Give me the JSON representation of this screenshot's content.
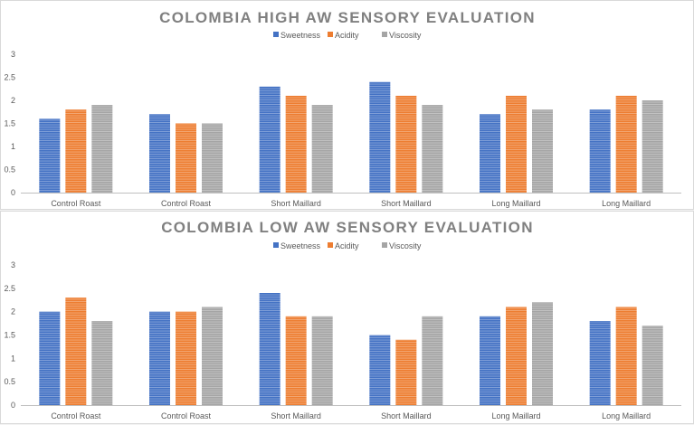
{
  "chart_data": [
    {
      "type": "bar",
      "title": "COLOMBIA HIGH AW SENSORY EVALUATION",
      "categories": [
        "Control Roast",
        "Control Roast",
        "Short Maillard",
        "Short Maillard",
        "Long Maillard",
        "Long Maillard"
      ],
      "series": [
        {
          "name": "Sweetness",
          "color": "#4472c4",
          "values": [
            1.6,
            1.7,
            2.3,
            2.4,
            1.7,
            1.8
          ]
        },
        {
          "name": "Acidity",
          "color": "#ed7d31",
          "values": [
            1.8,
            1.5,
            2.1,
            2.1,
            2.1,
            2.1
          ]
        },
        {
          "name": "Viscosity",
          "color": "#a5a5a5",
          "values": [
            1.9,
            1.5,
            1.9,
            1.9,
            1.8,
            2.0
          ]
        }
      ],
      "yticks": [
        "0",
        "0.5",
        "1",
        "1.5",
        "2",
        "2.5",
        "3"
      ],
      "ylim": [
        0,
        3
      ],
      "xlabel": "",
      "ylabel": "",
      "legend": "top-center",
      "grid": false
    },
    {
      "type": "bar",
      "title": "COLOMBIA LOW AW SENSORY EVALUATION",
      "categories": [
        "Control Roast",
        "Control Roast",
        "Short Maillard",
        "Short Maillard",
        "Long Maillard",
        "Long Maillard"
      ],
      "series": [
        {
          "name": "Sweetness",
          "color": "#4472c4",
          "values": [
            2.0,
            2.0,
            2.4,
            1.5,
            1.9,
            1.8
          ]
        },
        {
          "name": "Acidity",
          "color": "#ed7d31",
          "values": [
            2.3,
            2.0,
            1.9,
            1.4,
            2.1,
            2.1
          ]
        },
        {
          "name": "Viscosity",
          "color": "#a5a5a5",
          "values": [
            1.8,
            2.1,
            1.9,
            1.9,
            2.2,
            1.7
          ]
        }
      ],
      "yticks": [
        "0",
        "0.5",
        "1",
        "1.5",
        "2",
        "2.5",
        "3"
      ],
      "ylim": [
        0,
        3
      ],
      "xlabel": "",
      "ylabel": "",
      "legend": "top-center",
      "grid": false
    }
  ]
}
